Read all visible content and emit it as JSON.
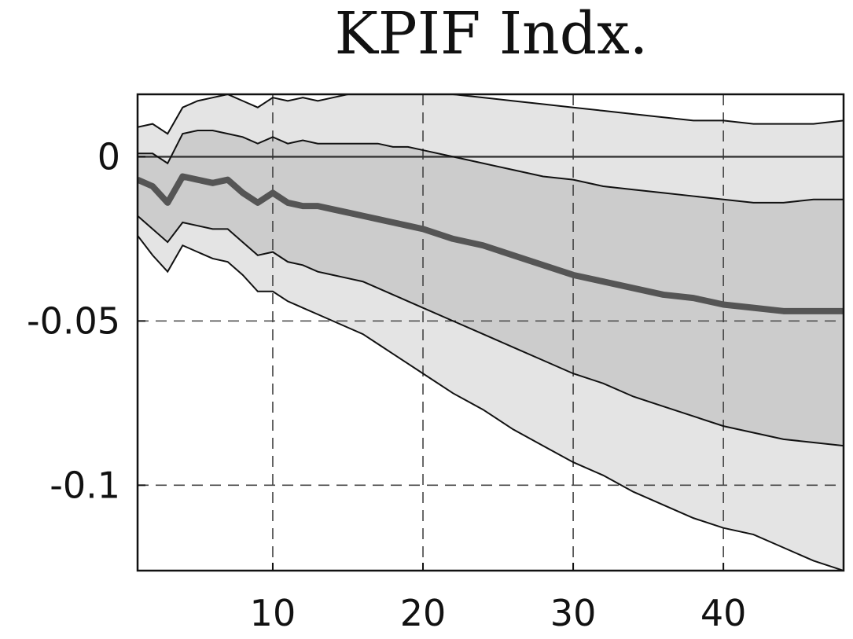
{
  "chart_data": {
    "type": "area",
    "title": "KPIF Indx.",
    "xlabel": "",
    "ylabel": "",
    "xlim": [
      1,
      48
    ],
    "ylim": [
      -0.126,
      0.019
    ],
    "x_ticks": [
      10,
      20,
      30,
      40
    ],
    "x_tick_labels": [
      "10",
      "20",
      "30",
      "40"
    ],
    "y_ticks": [
      0,
      -0.05,
      -0.1
    ],
    "y_tick_labels": [
      "0",
      "-0.05",
      "-0.1"
    ],
    "grid": true,
    "zero_line": 0,
    "bands": [
      {
        "name": "",
        "color": "#e4e4e4",
        "x": [
          1,
          2,
          3,
          4,
          5,
          6,
          7,
          8,
          9,
          10,
          11,
          12,
          13,
          14,
          15,
          16,
          17,
          18,
          19,
          20,
          22,
          24,
          26,
          28,
          30,
          32,
          34,
          36,
          38,
          40,
          42,
          44,
          46,
          48
        ],
        "upper": [
          0.009,
          0.01,
          0.007,
          0.015,
          0.017,
          0.018,
          0.019,
          0.017,
          0.015,
          0.018,
          0.017,
          0.018,
          0.017,
          0.018,
          0.019,
          0.019,
          0.019,
          0.019,
          0.019,
          0.019,
          0.019,
          0.018,
          0.017,
          0.016,
          0.015,
          0.014,
          0.013,
          0.012,
          0.011,
          0.011,
          0.01,
          0.01,
          0.01,
          0.011
        ],
        "lower": [
          -0.024,
          -0.03,
          -0.035,
          -0.027,
          -0.029,
          -0.031,
          -0.032,
          -0.036,
          -0.041,
          -0.041,
          -0.044,
          -0.046,
          -0.048,
          -0.05,
          -0.052,
          -0.054,
          -0.057,
          -0.06,
          -0.063,
          -0.066,
          -0.072,
          -0.077,
          -0.083,
          -0.088,
          -0.093,
          -0.097,
          -0.102,
          -0.106,
          -0.11,
          -0.113,
          -0.115,
          -0.119,
          -0.123,
          -0.126
        ]
      },
      {
        "name": "",
        "color": "#cccccc",
        "x": [
          1,
          2,
          3,
          4,
          5,
          6,
          7,
          8,
          9,
          10,
          11,
          12,
          13,
          14,
          15,
          16,
          17,
          18,
          19,
          20,
          22,
          24,
          26,
          28,
          30,
          32,
          34,
          36,
          38,
          40,
          42,
          44,
          46,
          48
        ],
        "upper": [
          0.001,
          0.001,
          -0.002,
          0.007,
          0.008,
          0.008,
          0.007,
          0.006,
          0.004,
          0.006,
          0.004,
          0.005,
          0.004,
          0.004,
          0.004,
          0.004,
          0.004,
          0.003,
          0.003,
          0.002,
          0.0,
          -0.002,
          -0.004,
          -0.006,
          -0.007,
          -0.009,
          -0.01,
          -0.011,
          -0.012,
          -0.013,
          -0.014,
          -0.014,
          -0.013,
          -0.013
        ],
        "lower": [
          -0.018,
          -0.022,
          -0.026,
          -0.02,
          -0.021,
          -0.022,
          -0.022,
          -0.026,
          -0.03,
          -0.029,
          -0.032,
          -0.033,
          -0.035,
          -0.036,
          -0.037,
          -0.038,
          -0.04,
          -0.042,
          -0.044,
          -0.046,
          -0.05,
          -0.054,
          -0.058,
          -0.062,
          -0.066,
          -0.069,
          -0.073,
          -0.076,
          -0.079,
          -0.082,
          -0.084,
          -0.086,
          -0.087,
          -0.088
        ]
      }
    ],
    "series": [
      {
        "name": "",
        "color": "#555555",
        "x": [
          1,
          2,
          3,
          4,
          5,
          6,
          7,
          8,
          9,
          10,
          11,
          12,
          13,
          14,
          15,
          16,
          17,
          18,
          19,
          20,
          22,
          24,
          26,
          28,
          30,
          32,
          34,
          36,
          38,
          40,
          42,
          44,
          46,
          48
        ],
        "values": [
          -0.007,
          -0.009,
          -0.014,
          -0.006,
          -0.007,
          -0.008,
          -0.007,
          -0.011,
          -0.014,
          -0.011,
          -0.014,
          -0.015,
          -0.015,
          -0.016,
          -0.017,
          -0.018,
          -0.019,
          -0.02,
          -0.021,
          -0.022,
          -0.025,
          -0.027,
          -0.03,
          -0.033,
          -0.036,
          -0.038,
          -0.04,
          -0.042,
          -0.043,
          -0.045,
          -0.046,
          -0.047,
          -0.047,
          -0.047
        ]
      }
    ]
  }
}
